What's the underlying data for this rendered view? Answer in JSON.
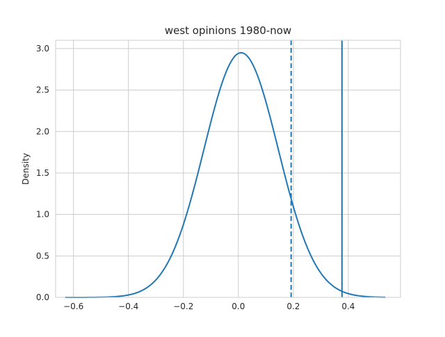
{
  "chart_data": {
    "type": "line",
    "title": "west opinions 1980-now",
    "xlabel": "",
    "ylabel": "Density",
    "xlim": [
      -0.665,
      0.59
    ],
    "ylim": [
      0,
      3.1
    ],
    "xticks": [
      -0.6,
      -0.4,
      -0.2,
      0.0,
      0.2,
      0.4
    ],
    "xtick_labels": [
      "−0.6",
      "−0.4",
      "−0.2",
      "0.0",
      "0.2",
      "0.4"
    ],
    "yticks": [
      0.0,
      0.5,
      1.0,
      1.5,
      2.0,
      2.5,
      3.0
    ],
    "ytick_labels": [
      "0.0",
      "0.5",
      "1.0",
      "1.5",
      "2.0",
      "2.5",
      "3.0"
    ],
    "grid": true,
    "series": [
      {
        "color": "#1f77b4",
        "kde": {
          "mean": 0.01,
          "sd": 0.135,
          "peak": 2.95
        },
        "x_range": [
          -0.63,
          0.535
        ]
      }
    ],
    "vlines": [
      {
        "x": 0.192,
        "style": "dashed",
        "color": "#1f77b4"
      },
      {
        "x": 0.377,
        "style": "solid",
        "color": "#1f77b4"
      }
    ]
  }
}
